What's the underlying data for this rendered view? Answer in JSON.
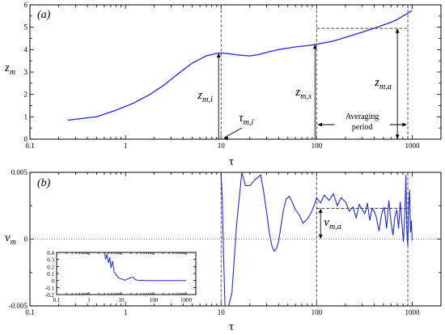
{
  "chart_data": [
    {
      "id": "a",
      "type": "line",
      "panel_label": "(a)",
      "ylabel": "z",
      "ylabel_sub": "m",
      "xlabel": "τ",
      "x_scale": "log",
      "xlim": [
        0.1,
        2000
      ],
      "ylim": [
        0,
        6
      ],
      "x_ticks": [
        0.1,
        1,
        10,
        100,
        1000
      ],
      "x_tick_labels": [
        "0.1",
        "1",
        "10",
        "100",
        "1000"
      ],
      "y_ticks": [
        0,
        1,
        2,
        3,
        4,
        5,
        6
      ],
      "y_tick_labels": [
        "0",
        "1",
        "2",
        "3",
        "4",
        "5",
        "6"
      ],
      "series": [
        {
          "color": "#1f2bd6",
          "x": [
            0.25,
            0.5,
            0.8,
            1.2,
            1.8,
            2.5,
            3.5,
            5,
            7,
            9,
            10,
            12,
            15,
            20,
            25,
            30,
            40,
            60,
            80,
            100,
            150,
            200,
            300,
            400,
            500,
            600,
            700,
            800,
            900,
            1000
          ],
          "y": [
            0.85,
            1.0,
            1.3,
            1.6,
            2.0,
            2.4,
            2.9,
            3.4,
            3.72,
            3.83,
            3.85,
            3.82,
            3.76,
            3.72,
            3.78,
            3.88,
            4.0,
            4.12,
            4.18,
            4.24,
            4.38,
            4.55,
            4.78,
            4.95,
            5.1,
            5.22,
            5.35,
            5.5,
            5.62,
            5.75
          ]
        }
      ],
      "annotations": {
        "z_mi": {
          "base": "z",
          "sub": "m,i",
          "x": 10,
          "y": 3.85
        },
        "tau_mi": {
          "base": "τ",
          "sub": "m,i",
          "x": 10
        },
        "z_ms": {
          "base": "z",
          "sub": "m,s",
          "x": 100,
          "y": 4.24
        },
        "z_ma": {
          "base": "z",
          "sub": "m,a",
          "x": 700,
          "y": 4.95
        },
        "averaging_period": {
          "line1": "Averaging",
          "line2": "period",
          "x_start": 100,
          "x_end": 900
        }
      }
    },
    {
      "id": "b",
      "type": "line",
      "panel_label": "(b)",
      "ylabel": "v",
      "ylabel_sub": "m",
      "xlabel": "τ",
      "x_scale": "log",
      "xlim": [
        0.1,
        2000
      ],
      "ylim": [
        -0.005,
        0.005
      ],
      "x_ticks": [
        0.1,
        1,
        10,
        100,
        1000
      ],
      "x_tick_labels": [
        "0.1",
        "1",
        "10",
        "100",
        "1000"
      ],
      "y_ticks": [
        -0.005,
        0,
        0.005
      ],
      "y_tick_labels": [
        "-0.005",
        "0",
        "0.005"
      ],
      "series": [
        {
          "color": "#1f2bd6",
          "x": [
            10.0,
            10.3,
            10.6,
            11.0,
            11.4,
            12.0,
            13.0,
            14.5,
            16.5,
            18.0,
            20,
            23,
            26,
            28,
            30,
            32,
            34,
            36,
            38,
            40,
            42,
            45,
            48,
            52,
            56,
            60,
            66,
            72,
            80,
            88,
            95,
            100,
            110,
            120,
            135,
            150,
            165,
            180,
            200,
            220,
            240,
            260,
            280,
            300,
            320,
            340,
            360,
            380,
            400,
            420,
            450,
            480,
            510,
            540,
            570,
            600,
            630,
            660,
            690,
            720,
            750,
            780,
            810,
            840,
            860,
            880,
            900,
            920,
            940,
            960,
            980,
            1000
          ],
          "y": [
            0.005,
            0.003,
            -0.001,
            -0.005,
            -0.005,
            -0.005,
            -0.004,
            0.001,
            0.005,
            0.004,
            0.004,
            0.0045,
            0.0048,
            0.0035,
            0.002,
            0.0005,
            -0.0005,
            -0.0009,
            -0.0007,
            -0.0002,
            0.0008,
            0.0022,
            0.003,
            0.0032,
            0.0027,
            0.0022,
            0.0018,
            0.0012,
            0.0015,
            0.002,
            0.0026,
            0.0031,
            0.0027,
            0.0033,
            0.0029,
            0.0034,
            0.0025,
            0.0031,
            0.0028,
            0.0021,
            0.0024,
            0.0016,
            0.0026,
            0.0022,
            0.0019,
            0.0027,
            0.0014,
            0.0023,
            0.0021,
            0.0017,
            0.0006,
            0.0019,
            0.0024,
            0.0008,
            0.0029,
            0.0013,
            0.0003,
            0.0017,
            0.0022,
            0.0008,
            0.0028,
            0.0012,
            -0.0002,
            0.002,
            0.0048,
            0.0005,
            -0.0005,
            0.0026,
            0.0037,
            0.0005,
            0.0014,
            -0.0001
          ]
        }
      ],
      "reference_lines": {
        "y_dotted": 0,
        "v_ma_level": 0.0023
      },
      "annotations": {
        "v_ma": {
          "base": "v",
          "sub": "m,a",
          "x": 110,
          "y_top": 0.0023,
          "y_bottom": 0
        }
      },
      "inset": {
        "type": "line",
        "x_scale": "log",
        "xlim": [
          0.1,
          2000
        ],
        "ylim": [
          -0.2,
          0.4
        ],
        "x_ticks": [
          0.1,
          1,
          10,
          100,
          1000
        ],
        "x_tick_labels": [
          "0.1",
          "1",
          "10",
          "100",
          "1000"
        ],
        "y_ticks": [
          -0.2,
          -0.1,
          0,
          0.1,
          0.2,
          0.3,
          0.4
        ],
        "y_tick_labels": [
          "-0.2",
          "-0.1",
          "0",
          "0.1",
          "0.2",
          "0.3",
          "0.4"
        ],
        "series": [
          {
            "color": "#1f2bd6",
            "x": [
              3.0,
              3.3,
              3.6,
              4.0,
              4.4,
              4.8,
              5.3,
              6.0,
              7.0,
              8.0,
              10,
              13,
              17,
              22,
              28,
              35,
              45,
              60,
              100,
              200,
              500,
              1000
            ],
            "y": [
              0.4,
              0.3,
              0.38,
              0.25,
              0.33,
              0.18,
              0.28,
              0.12,
              0.08,
              0.04,
              0.02,
              0.005,
              0.03,
              0.05,
              0.01,
              0.0,
              0.005,
              0.0,
              0.0,
              0.0,
              0.0,
              0.0
            ]
          }
        ]
      }
    }
  ],
  "ui": {
    "panel_a": "(a)",
    "panel_b": "(b)",
    "tau": "τ",
    "z": "z",
    "m": "m",
    "v": "v"
  }
}
